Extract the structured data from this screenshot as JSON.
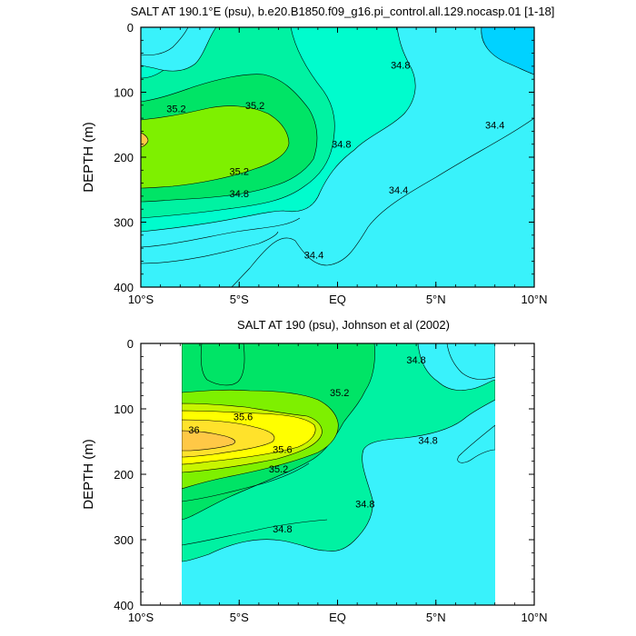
{
  "chart_data": [
    {
      "type": "contour",
      "title": "SALT AT 190.1°E (psu), b.e20.B1850.f09_g16.pi_control.all.129.nocasp.01 [1-18]",
      "ylabel": "DEPTH (m)",
      "xlim": [
        -10,
        10
      ],
      "ylim": [
        400,
        0
      ],
      "x_ticks": [
        "10°S",
        "5°S",
        "EQ",
        "5°N",
        "10°N"
      ],
      "y_ticks": [
        "0",
        "100",
        "200",
        "300",
        "400"
      ],
      "grid": false,
      "contour_labels": [
        {
          "text": "35.2",
          "x": -8.2,
          "y": 125
        },
        {
          "text": "35.2",
          "x": -4.2,
          "y": 120
        },
        {
          "text": "35.2",
          "x": -5.0,
          "y": 222
        },
        {
          "text": "34.8",
          "x": -5.0,
          "y": 256
        },
        {
          "text": "34.8",
          "x": 0.2,
          "y": 180
        },
        {
          "text": "34.8",
          "x": 3.2,
          "y": 58
        },
        {
          "text": "34.4",
          "x": 3.1,
          "y": 250
        },
        {
          "text": "34.4",
          "x": -1.2,
          "y": 350
        },
        {
          "text": "34.4",
          "x": 8.0,
          "y": 150
        }
      ]
    },
    {
      "type": "contour",
      "title": "SALT AT 190 (psu), Johnson et al (2002)",
      "ylabel": "DEPTH (m)",
      "xlim": [
        -10,
        10
      ],
      "ylim": [
        400,
        0
      ],
      "x_ticks": [
        "10°S",
        "5°S",
        "EQ",
        "5°N",
        "10°N"
      ],
      "y_ticks": [
        "0",
        "100",
        "200",
        "300",
        "400"
      ],
      "data_extent_x": [
        -8,
        8
      ],
      "grid": false,
      "contour_labels": [
        {
          "text": "36",
          "x": -7.3,
          "y": 132
        },
        {
          "text": "35.6",
          "x": -4.8,
          "y": 112
        },
        {
          "text": "35.6",
          "x": -2.8,
          "y": 162
        },
        {
          "text": "35.2",
          "x": -3.0,
          "y": 192
        },
        {
          "text": "35.2",
          "x": 0.1,
          "y": 75
        },
        {
          "text": "34.8",
          "x": 4.0,
          "y": 25
        },
        {
          "text": "34.8",
          "x": 4.6,
          "y": 148
        },
        {
          "text": "34.8",
          "x": 1.4,
          "y": 245
        },
        {
          "text": "34.8",
          "x": -2.8,
          "y": 283
        }
      ]
    }
  ]
}
